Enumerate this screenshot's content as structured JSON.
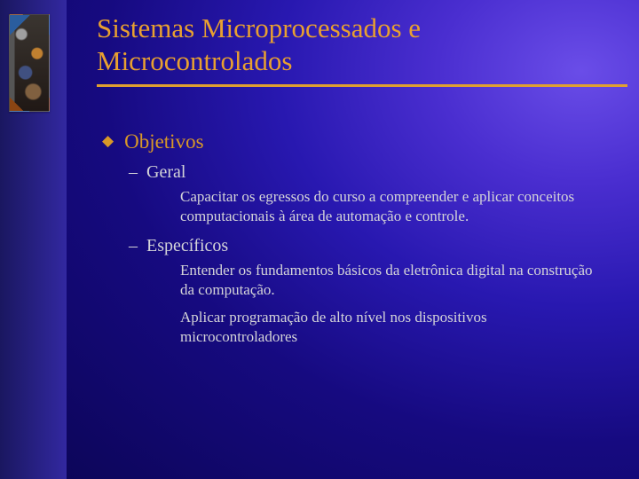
{
  "colors": {
    "accent": "#e0a030",
    "title": "#e8a030",
    "bullet1": "#d89828",
    "bodyText": "#d4d4d8",
    "bgGradientStart": "#6a4de8",
    "bgGradientEnd": "#0a0450",
    "sidebarStart": "#1a1760",
    "sidebarEnd": "#3228a0"
  },
  "typography": {
    "titleSize": 31,
    "l1Size": 23,
    "l2Size": 20,
    "l3Size": 17,
    "family": "Times New Roman"
  },
  "title": "Sistemas Microprocessados e Microcontrolados",
  "content": {
    "heading": "Objetivos",
    "sections": [
      {
        "label": "Geral",
        "items": [
          "Capacitar os egressos do curso a compreender e aplicar conceitos computacionais à área de automação e controle."
        ]
      },
      {
        "label": "Específicos",
        "items": [
          "Entender os fundamentos básicos da eletrônica digital na construção da computação.",
          "Aplicar programação de alto nível nos dispositivos microcontroladores"
        ]
      }
    ]
  }
}
